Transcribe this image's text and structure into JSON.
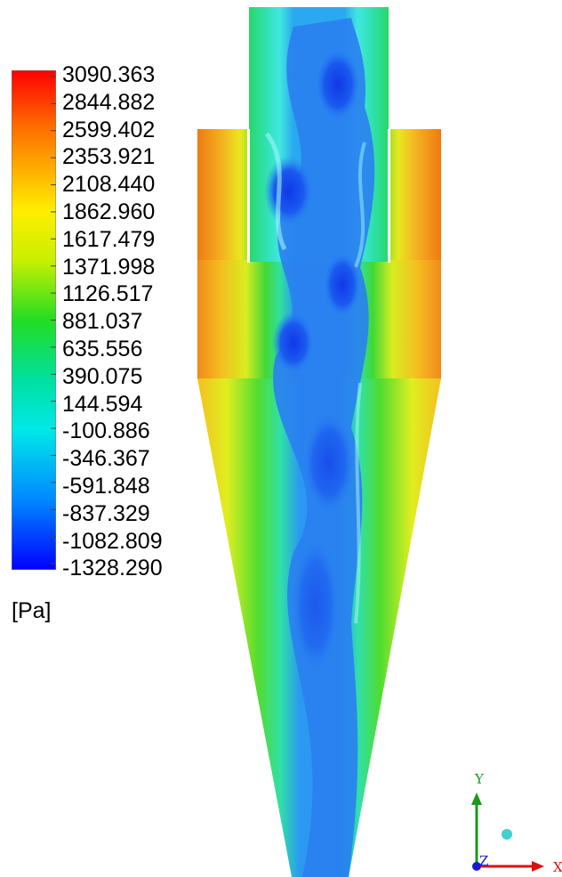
{
  "legend": {
    "ticks": [
      "3090.363",
      "2844.882",
      "2599.402",
      "2353.921",
      "2108.440",
      "1862.960",
      "1617.479",
      "1371.998",
      "1126.517",
      "881.037",
      "635.556",
      "390.075",
      "144.594",
      "-100.886",
      "-346.367",
      "-591.848",
      "-837.329",
      "-1082.809",
      "-1328.290"
    ],
    "unit": "[Pa]",
    "colormap": [
      "#ff0000",
      "#ff8800",
      "#ffee00",
      "#aaf000",
      "#22dd22",
      "#00e0a0",
      "#00e8e8",
      "#0088ff",
      "#0000ff"
    ]
  },
  "axes": {
    "x_label": "X",
    "y_label": "Y",
    "z_label": "Z"
  },
  "colors": {
    "outer_wall": "#f08a1a",
    "mid_band": "#f0e020",
    "green_band": "#30d040",
    "cyan_band": "#40e8d0",
    "core_blue": "#2a7af0",
    "deep_blue": "#1048e8",
    "axis_y": "#1a9a1a",
    "axis_x": "#dd1111",
    "axis_z": "#1a1acc",
    "axis_dot": "#40d0d0"
  }
}
